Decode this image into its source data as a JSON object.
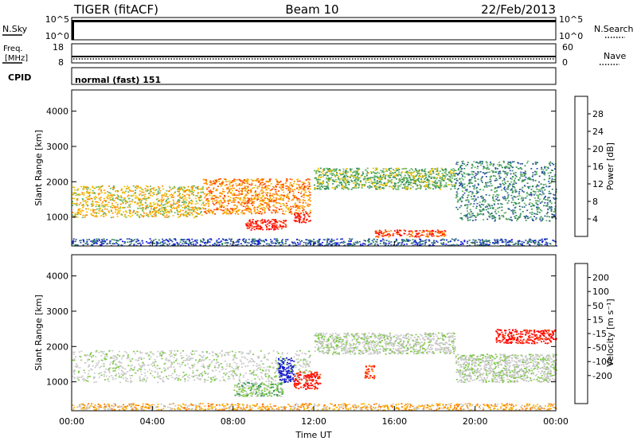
{
  "header": {
    "title": "TIGER (fitACF)",
    "beam": "Beam 10",
    "date": "22/Feb/2013"
  },
  "top_panels": {
    "nsky": {
      "label": "N.Sky",
      "ticks": [
        "10^5",
        "10^0"
      ],
      "right_ticks": [
        "10^5",
        "10^0"
      ],
      "right_label": "N.Search"
    },
    "freq": {
      "label_line1": "Freq.",
      "label_line2": "[MHz]",
      "ticks": [
        "18",
        "8"
      ],
      "right_ticks": [
        "60",
        "0"
      ],
      "right_label": "Nave"
    },
    "cpid": {
      "label": "CPID",
      "value": "normal (fast) 151"
    }
  },
  "colors": {
    "power": [
      "#1414e6",
      "#2850a0",
      "#2e8a55",
      "#64b464",
      "#f0c000",
      "#ff8c00",
      "#ff4000",
      "#ff0000"
    ],
    "velocity": [
      "#1414d2",
      "#1e46b4",
      "#288c50",
      "#78c83c",
      "#c8c8c8",
      "#c8c8c8",
      "#ffb400",
      "#ff7800",
      "#ff3c00",
      "#ff0000"
    ]
  },
  "chart_data": [
    {
      "type": "heatmap",
      "quantity": "power",
      "ylabel": "Slant Range [km]",
      "yticks": [
        1000,
        2000,
        3000,
        4000
      ],
      "ylim": [
        180,
        4600
      ],
      "xlim_hours": [
        0,
        24
      ],
      "colorbar": {
        "label": "Power [dB]",
        "ticks": [
          "4",
          "8",
          "12",
          "16",
          "20",
          "24",
          "28"
        ],
        "range": [
          0,
          32
        ]
      },
      "echo_regions": [
        {
          "t0": 0.0,
          "t1": 6.5,
          "r0": 1000,
          "r1": 1900,
          "level": 4
        },
        {
          "t0": 6.5,
          "t1": 11.8,
          "r0": 1100,
          "r1": 2100,
          "level": 5
        },
        {
          "t0": 8.6,
          "t1": 10.6,
          "r0": 650,
          "r1": 950,
          "level": 7
        },
        {
          "t0": 11.0,
          "t1": 11.8,
          "r0": 850,
          "r1": 1150,
          "level": 7
        },
        {
          "t0": 12.0,
          "t1": 19.0,
          "r0": 1800,
          "r1": 2400,
          "level": 3
        },
        {
          "t0": 19.0,
          "t1": 24.0,
          "r0": 900,
          "r1": 2600,
          "level": 2
        },
        {
          "t0": 15.0,
          "t1": 18.5,
          "r0": 450,
          "r1": 650,
          "level": 6
        },
        {
          "t0": 0.0,
          "t1": 24.0,
          "r0": 200,
          "r1": 400,
          "level": 1
        }
      ]
    },
    {
      "type": "heatmap",
      "quantity": "velocity",
      "xlabel": "Time UT",
      "ylabel": "Slant Range [km]",
      "yticks": [
        1000,
        2000,
        3000,
        4000
      ],
      "ylim": [
        180,
        4600
      ],
      "xlim_hours": [
        0,
        24
      ],
      "xticks": [
        "00:00",
        "04:00",
        "08:00",
        "12:00",
        "16:00",
        "20:00",
        "00:00"
      ],
      "colorbar": {
        "label": "Velocity [m s⁻¹]",
        "ticks": [
          "200",
          "100",
          "50",
          "15",
          "-15",
          "-50",
          "-100",
          "-200"
        ],
        "range": [
          -250,
          250
        ]
      },
      "echo_regions": [
        {
          "t0": 0.0,
          "t1": 11.8,
          "r0": 1000,
          "r1": 1900,
          "level": 4
        },
        {
          "t0": 12.0,
          "t1": 19.0,
          "r0": 1800,
          "r1": 2400,
          "level": 4
        },
        {
          "t0": 19.0,
          "t1": 24.0,
          "r0": 1000,
          "r1": 1800,
          "level": 4
        },
        {
          "t0": 8.0,
          "t1": 10.5,
          "r0": 600,
          "r1": 1000,
          "level": 3
        },
        {
          "t0": 10.2,
          "t1": 11.0,
          "r0": 1000,
          "r1": 1700,
          "level": 0
        },
        {
          "t0": 11.0,
          "t1": 12.3,
          "r0": 800,
          "r1": 1300,
          "level": 9
        },
        {
          "t0": 14.5,
          "t1": 15.0,
          "r0": 1100,
          "r1": 1500,
          "level": 8
        },
        {
          "t0": 21.0,
          "t1": 24.0,
          "r0": 2100,
          "r1": 2500,
          "level": 9
        },
        {
          "t0": 0.0,
          "t1": 24.0,
          "r0": 200,
          "r1": 400,
          "level": 6
        }
      ]
    }
  ]
}
